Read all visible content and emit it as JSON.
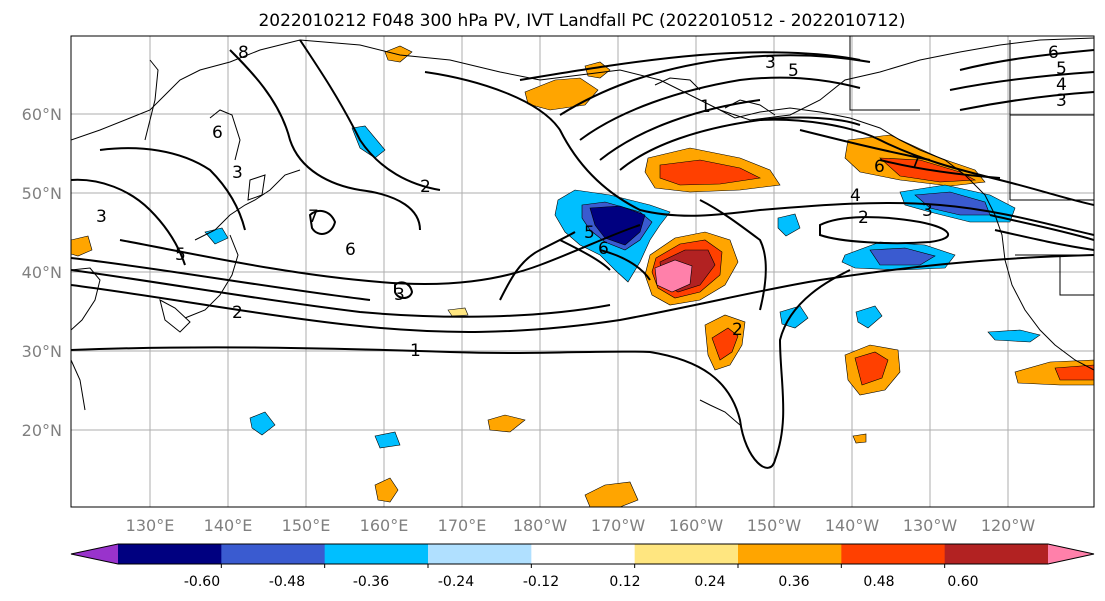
{
  "title": "2022010212 F048 300 hPa PV, IVT Landfall PC (2022010512 - 2022010712)",
  "map": {
    "lat_ticks": [
      "20°N",
      "30°N",
      "40°N",
      "50°N",
      "60°N"
    ],
    "lon_ticks": [
      "130°E",
      "140°E",
      "150°E",
      "160°E",
      "170°E",
      "180°W",
      "170°W",
      "160°W",
      "150°W",
      "140°W",
      "130°W",
      "120°W"
    ],
    "contour_labels": [
      "8",
      "6",
      "7",
      "3",
      "3",
      "5",
      "2",
      "6",
      "3",
      "2",
      "1",
      "5",
      "6",
      "2",
      "1",
      "3",
      "5",
      "7",
      "6",
      "4",
      "2",
      "3",
      "6",
      "5",
      "4",
      "3"
    ]
  },
  "colorbar": {
    "tick_labels": [
      "-0.60",
      "-0.48",
      "-0.36",
      "-0.24",
      "-0.12",
      "0.12",
      "0.24",
      "0.36",
      "0.48",
      "0.60"
    ],
    "colors": [
      "#9933cc",
      "#000080",
      "#3a5bd0",
      "#00bfff",
      "#b0e0ff",
      "#ffffff",
      "#ffe680",
      "#ffa500",
      "#ff4000",
      "#b22222",
      "#ff80aa"
    ]
  }
}
